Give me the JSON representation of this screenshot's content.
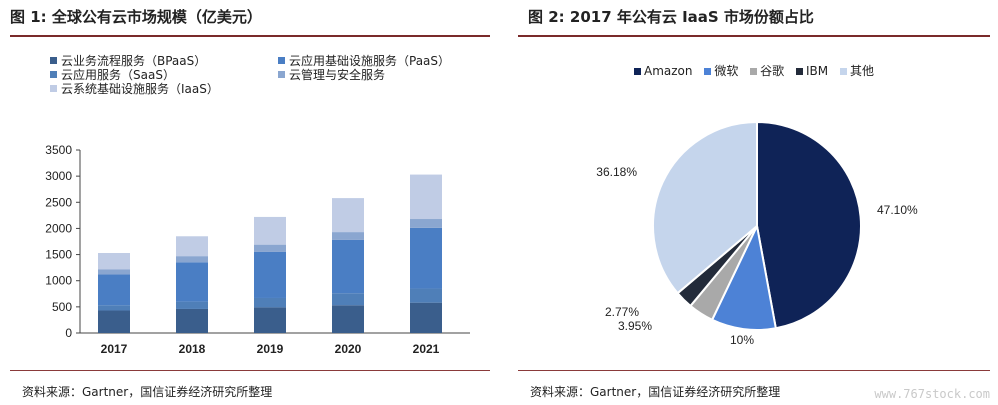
{
  "left": {
    "title": "图 1:  全球公有云市场规模（亿美元）",
    "source": "资料来源：Gartner，国信证券经济研究所整理"
  },
  "right": {
    "title": "图 2:  2017 年公有云 IaaS 市场份额占比",
    "source": "资料来源：Gartner，国信证券经济研究所整理"
  },
  "watermark": "www.767stock.com",
  "chart_data": [
    {
      "type": "bar",
      "stacked": true,
      "categories": [
        "2017",
        "2018",
        "2019",
        "2020",
        "2021"
      ],
      "series": [
        {
          "name": "云业务流程服务（BPaaS）",
          "color": "#3a5e8c",
          "values": [
            430,
            460,
            490,
            530,
            580
          ]
        },
        {
          "name": "云应用服务（SaaS）",
          "color": "#4f7fb8",
          "values": [
            100,
            140,
            180,
            230,
            270
          ]
        },
        {
          "name": "云应用基础设施服务（PaaS）",
          "color": "#4a7ec4",
          "values": [
            590,
            750,
            880,
            1020,
            1160
          ]
        },
        {
          "name": "云管理与安全服务",
          "color": "#8aa6d0",
          "values": [
            100,
            120,
            140,
            150,
            170
          ]
        },
        {
          "name": "云系统基础设施服务（IaaS）",
          "color": "#c0cce5",
          "values": [
            310,
            380,
            530,
            650,
            850
          ]
        }
      ],
      "yticks": [
        0,
        500,
        1000,
        1500,
        2000,
        2500,
        3000,
        3500
      ],
      "ylim": [
        0,
        3500
      ],
      "legend_position": "top-left"
    },
    {
      "type": "pie",
      "labels": [
        "Amazon",
        "微软",
        "谷歌",
        "IBM",
        "其他"
      ],
      "values": [
        47.1,
        10,
        3.95,
        2.77,
        36.18
      ],
      "value_labels": [
        "47.10%",
        "10%",
        "3.95%",
        "2.77%",
        "36.18%"
      ],
      "colors": [
        "#0f2357",
        "#4d82d6",
        "#a9a9a9",
        "#232b3a",
        "#c5d5ec"
      ],
      "legend_position": "top"
    }
  ]
}
